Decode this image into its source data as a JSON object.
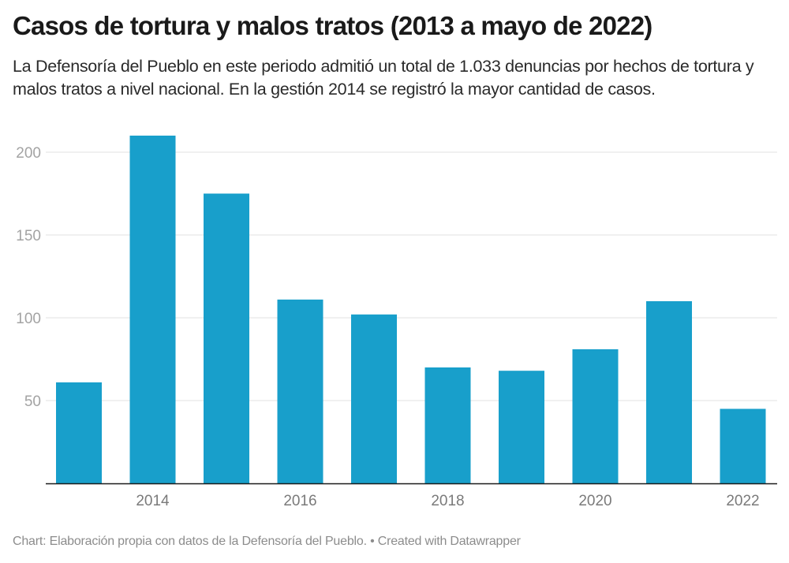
{
  "header": {
    "title": "Casos de tortura y malos tratos (2013 a mayo de 2022)",
    "subtitle": "La Defensoría del Pueblo en este periodo admitió un total de 1.033 denuncias por hechos de tortura y malos tratos a nivel nacional. En la gestión 2014 se registró la mayor cantidad de casos."
  },
  "footer": {
    "text": "Chart: Elaboración propia con datos de la Defensoría del Pueblo. • Created with Datawrapper"
  },
  "colors": {
    "bar": "#189fcb",
    "grid": "#e6e6e6",
    "axis": "#1a1a1a"
  },
  "chart_data": {
    "type": "bar",
    "title": "Casos de tortura y malos tratos (2013 a mayo de 2022)",
    "xlabel": "",
    "ylabel": "",
    "categories": [
      "2013",
      "2014",
      "2015",
      "2016",
      "2017",
      "2018",
      "2019",
      "2020",
      "2021",
      "2022"
    ],
    "values": [
      61,
      210,
      175,
      111,
      102,
      70,
      68,
      81,
      110,
      45
    ],
    "ylim": [
      0,
      220
    ],
    "yticks": [
      50,
      100,
      150,
      200
    ],
    "xtick_labels": [
      "2014",
      "2016",
      "2018",
      "2020",
      "2022"
    ],
    "grid": true,
    "legend": "none"
  }
}
